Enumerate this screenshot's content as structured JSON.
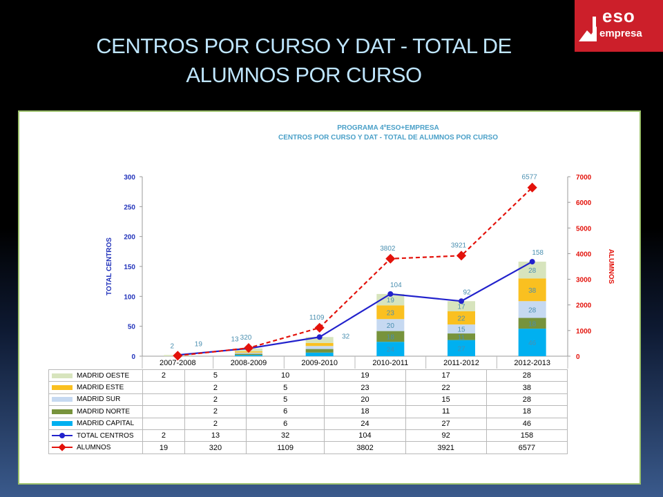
{
  "slide": {
    "title_line1": "CENTROS POR CURSO Y DAT - TOTAL DE",
    "title_line2": "ALUMNOS POR CURSO"
  },
  "logo": {
    "name": "eso",
    "sub": "empresa"
  },
  "chart_data": {
    "type": "bar",
    "title": "PROGRAMA 4ºESO+EMPRESA",
    "subtitle": "CENTROS POR CURSO Y DAT - TOTAL DE ALUMNOS POR CURSO",
    "ylabel": "TOTAL CENTROS",
    "y2label": "ALUMNOS",
    "ylim": [
      0,
      300
    ],
    "y2lim": [
      0,
      7000
    ],
    "yticks": [
      0,
      50,
      100,
      150,
      200,
      250,
      300
    ],
    "y2ticks": [
      0,
      1000,
      2000,
      3000,
      4000,
      5000,
      6000,
      7000
    ],
    "categories": [
      "2007-2008",
      "2008-2009",
      "2009-2010",
      "2010-2011",
      "2011-2012",
      "2012-2013"
    ],
    "stacked_series": [
      {
        "name": "MADRID CAPITAL",
        "color": "#00b0f0",
        "values": [
          null,
          2,
          6,
          24,
          27,
          46
        ]
      },
      {
        "name": "MADRID NORTE",
        "color": "#77933c",
        "values": [
          null,
          2,
          6,
          18,
          11,
          18
        ]
      },
      {
        "name": "MADRID SUR",
        "color": "#c6d9f1",
        "values": [
          null,
          2,
          5,
          20,
          15,
          28
        ]
      },
      {
        "name": "MADRID ESTE",
        "color": "#fac020",
        "values": [
          null,
          2,
          5,
          23,
          22,
          38
        ]
      },
      {
        "name": "MADRID OESTE",
        "color": "#d7e4bd",
        "values": [
          2,
          5,
          10,
          19,
          17,
          28
        ]
      }
    ],
    "line_series": [
      {
        "name": "TOTAL CENTROS",
        "color": "#2222cc",
        "axis": "left",
        "values": [
          2,
          13,
          32,
          104,
          92,
          158
        ]
      },
      {
        "name": "ALUMNOS",
        "color": "#e3120b",
        "axis": "right",
        "values": [
          19,
          320,
          1109,
          3802,
          3921,
          6577
        ]
      }
    ],
    "table_order": [
      "MADRID OESTE",
      "MADRID ESTE",
      "MADRID SUR",
      "MADRID NORTE",
      "MADRID CAPITAL",
      "TOTAL CENTROS",
      "ALUMNOS"
    ],
    "legend": "table-bottom",
    "grid": false
  }
}
